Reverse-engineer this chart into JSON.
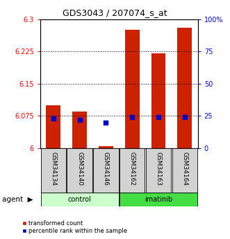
{
  "title": "GDS3043 / 207074_s_at",
  "samples": [
    "GSM34134",
    "GSM34140",
    "GSM34146",
    "GSM34162",
    "GSM34163",
    "GSM34164"
  ],
  "groups": [
    "control",
    "control",
    "control",
    "imatinib",
    "imatinib",
    "imatinib"
  ],
  "red_values": [
    6.1,
    6.085,
    6.005,
    6.275,
    6.22,
    6.28
  ],
  "blue_values": [
    23,
    22,
    20,
    24,
    24,
    24
  ],
  "ylim_left": [
    6.0,
    6.3
  ],
  "ylim_right": [
    0,
    100
  ],
  "yticks_left": [
    6.0,
    6.075,
    6.15,
    6.225,
    6.3
  ],
  "yticks_right": [
    0,
    25,
    50,
    75,
    100
  ],
  "ytick_labels_left": [
    "6",
    "6.075",
    "6.15",
    "6.225",
    "6.3"
  ],
  "ytick_labels_right": [
    "0",
    "25",
    "50",
    "75",
    "100%"
  ],
  "hlines": [
    6.075,
    6.15,
    6.225
  ],
  "bar_color": "#cc2200",
  "dot_color": "#0000cc",
  "control_color": "#ccffcc",
  "imatinib_color": "#44dd44",
  "group_label": "agent",
  "legend_items": [
    "transformed count",
    "percentile rank within the sample"
  ],
  "bg_color": "#ffffff",
  "bar_width": 0.55,
  "dot_size": 18,
  "title_fontsize": 9,
  "tick_fontsize": 7,
  "label_fontsize": 6.5,
  "group_fontsize": 7,
  "legend_fontsize": 6,
  "agent_fontsize": 7.5
}
